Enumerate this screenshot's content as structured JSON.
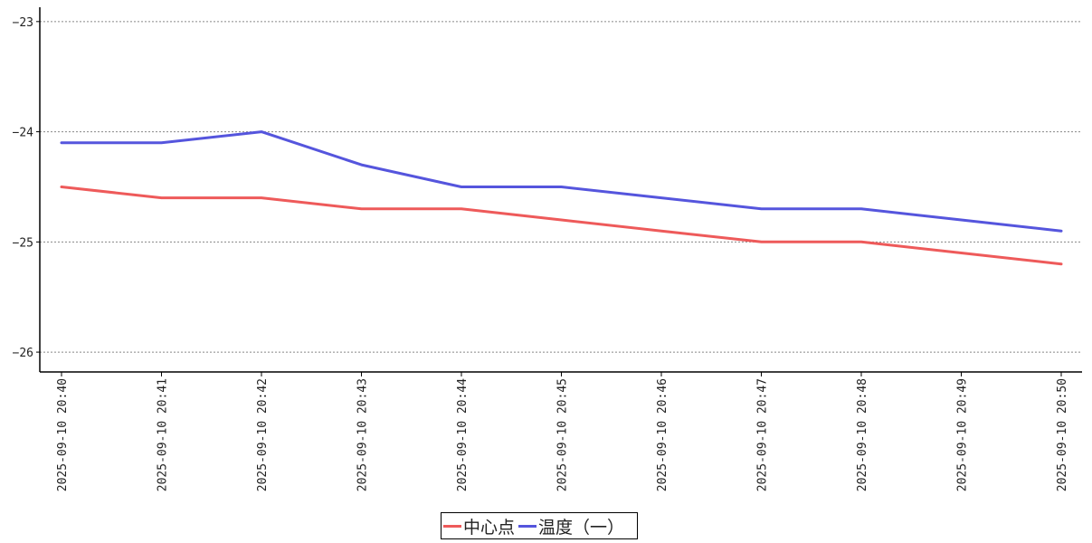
{
  "chart_data": {
    "type": "line",
    "x": [
      "2025-09-10 20:40",
      "2025-09-10 20:41",
      "2025-09-10 20:42",
      "2025-09-10 20:43",
      "2025-09-10 20:44",
      "2025-09-10 20:45",
      "2025-09-10 20:46",
      "2025-09-10 20:47",
      "2025-09-10 20:48",
      "2025-09-10 20:49",
      "2025-09-10 20:50"
    ],
    "series": [
      {
        "name": "中心点",
        "color": "#EE5A5A",
        "values": [
          -24.5,
          -24.6,
          -24.6,
          -24.7,
          -24.7,
          -24.8,
          -24.9,
          -25.0,
          -25.0,
          -25.1,
          -25.2
        ]
      },
      {
        "name": "温度（一）",
        "color": "#5555DD",
        "values": [
          -24.1,
          -24.1,
          -24.0,
          -24.3,
          -24.5,
          -24.5,
          -24.6,
          -24.7,
          -24.7,
          -24.8,
          -24.9
        ]
      }
    ],
    "yticks": [
      "−23",
      "−24",
      "−25",
      "−26"
    ],
    "ylim": [
      -26.18,
      -22.87
    ],
    "grid": true,
    "legend_position": "bottom-center",
    "title": "",
    "xlabel": "",
    "ylabel": ""
  }
}
